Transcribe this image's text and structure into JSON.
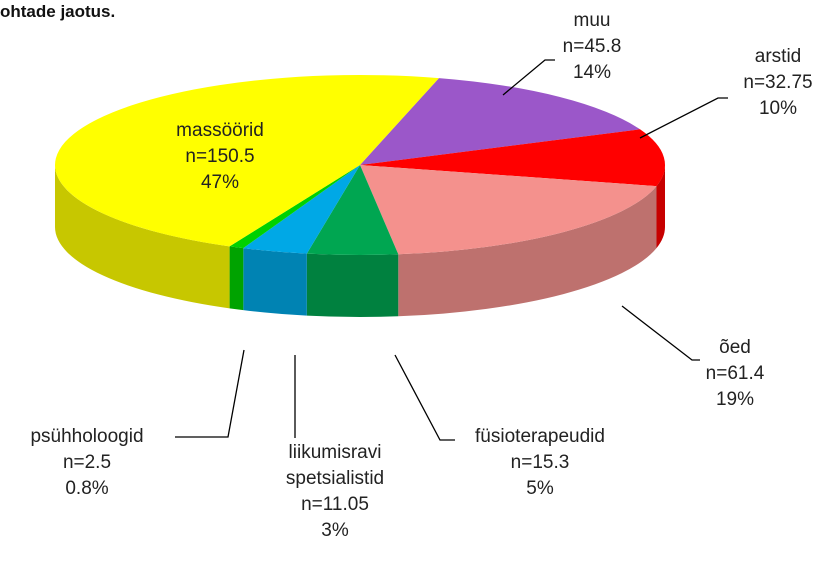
{
  "chart_data": {
    "type": "pie3d",
    "title": "ohtade jaotus.",
    "categories": [
      "muu",
      "arstid",
      "õed",
      "füsioterapeudid",
      "liikumisravi spetsialistid",
      "psühholoogid",
      "massöörid"
    ],
    "values": [
      45.8,
      32.75,
      61.4,
      15.3,
      11.05,
      2.5,
      150.5
    ],
    "value_labels": [
      "n=45.8",
      "n=32.75",
      "n=61.4",
      "n=15.3",
      "n=11.05",
      "n=2.5",
      "n=150.5"
    ],
    "percents": [
      14,
      10,
      19,
      5,
      3,
      0.8,
      47
    ],
    "percent_labels": [
      "14%",
      "10%",
      "19%",
      "5%",
      "3%",
      "0.8%",
      "47%"
    ],
    "colors": [
      "#9b57c9",
      "#ff0000",
      "#f4918d",
      "#00a651",
      "#00a8e6",
      "#00d100",
      "#ffff00"
    ]
  }
}
